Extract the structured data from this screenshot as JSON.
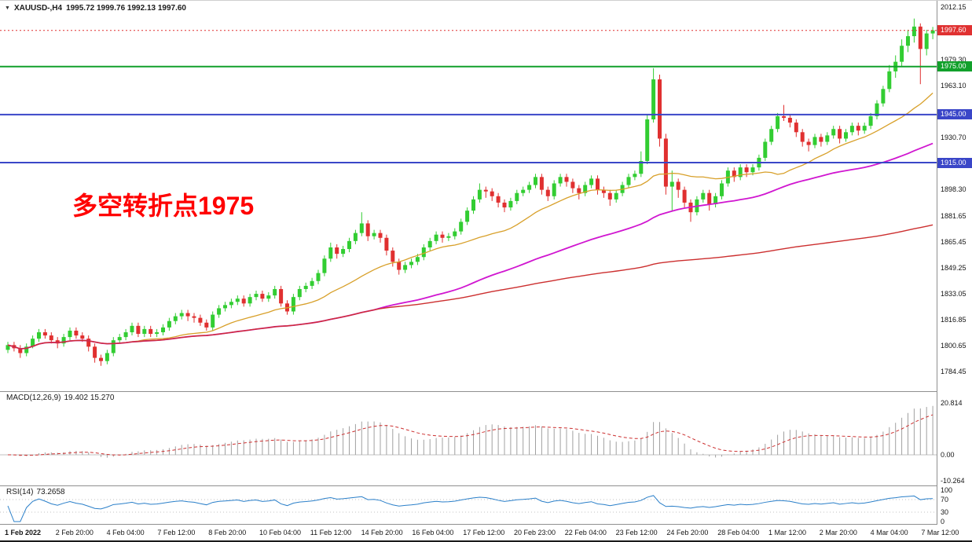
{
  "window": {
    "header": {
      "marker_icon": "▼",
      "symbol_period": "XAUUSD-,H4",
      "ohlc_text": "1995.72 1999.76 1992.13 1997.60"
    }
  },
  "colors": {
    "up_candle": "#32cd32",
    "down_candle": "#e03030",
    "ma_fast": "#d8a02a",
    "ma_mid": "#d016d0",
    "ma_slow": "#cc2f2f",
    "hline_green": "#12a02b",
    "hline_blue": "#3a46c8",
    "current_price": "#e03131",
    "macd_histogram": "#a0a0a0",
    "macd_signal": "#cc2f2f",
    "rsi_line": "#2a7fc9",
    "grid": "#c0c0c0",
    "separator": "#8f8f8f"
  },
  "chart_data": {
    "type": "candlestick",
    "symbol": "XAUUSD-",
    "timeframe": "H4",
    "current": {
      "open": 1995.72,
      "high": 1999.76,
      "low": 1992.13,
      "close": 1997.6
    },
    "candles": [
      [
        1798,
        1803,
        1796,
        1801
      ],
      [
        1801,
        1803,
        1797,
        1799
      ],
      [
        1799,
        1801,
        1793,
        1796
      ],
      [
        1796,
        1802,
        1794,
        1800
      ],
      [
        1800,
        1807,
        1799,
        1805
      ],
      [
        1805,
        1811,
        1803,
        1809
      ],
      [
        1809,
        1811,
        1805,
        1807
      ],
      [
        1807,
        1809,
        1802,
        1804
      ],
      [
        1804,
        1806,
        1799,
        1802
      ],
      [
        1802,
        1808,
        1800,
        1806
      ],
      [
        1806,
        1812,
        1804,
        1810
      ],
      [
        1810,
        1812,
        1805,
        1807
      ],
      [
        1807,
        1809,
        1803,
        1805
      ],
      [
        1805,
        1807,
        1797,
        1800
      ],
      [
        1800,
        1802,
        1790,
        1793
      ],
      [
        1793,
        1795,
        1788,
        1791
      ],
      [
        1791,
        1798,
        1789,
        1796
      ],
      [
        1796,
        1806,
        1794,
        1804
      ],
      [
        1804,
        1808,
        1802,
        1806
      ],
      [
        1806,
        1811,
        1804,
        1809
      ],
      [
        1809,
        1815,
        1807,
        1813
      ],
      [
        1813,
        1815,
        1806,
        1808
      ],
      [
        1808,
        1813,
        1806,
        1811
      ],
      [
        1811,
        1813,
        1806,
        1808
      ],
      [
        1808,
        1811,
        1806,
        1809
      ],
      [
        1809,
        1814,
        1807,
        1812
      ],
      [
        1812,
        1818,
        1810,
        1816
      ],
      [
        1816,
        1821,
        1814,
        1819
      ],
      [
        1819,
        1823,
        1817,
        1821
      ],
      [
        1821,
        1823,
        1816,
        1819
      ],
      [
        1819,
        1821,
        1815,
        1818
      ],
      [
        1818,
        1820,
        1813,
        1815
      ],
      [
        1815,
        1817,
        1810,
        1812
      ],
      [
        1812,
        1822,
        1810,
        1820
      ],
      [
        1820,
        1826,
        1818,
        1824
      ],
      [
        1824,
        1828,
        1822,
        1826
      ],
      [
        1826,
        1830,
        1824,
        1828
      ],
      [
        1828,
        1832,
        1826,
        1830
      ],
      [
        1830,
        1832,
        1825,
        1827
      ],
      [
        1827,
        1833,
        1825,
        1831
      ],
      [
        1831,
        1835,
        1829,
        1833
      ],
      [
        1833,
        1835,
        1828,
        1830
      ],
      [
        1830,
        1834,
        1828,
        1832
      ],
      [
        1832,
        1838,
        1830,
        1836
      ],
      [
        1836,
        1838,
        1825,
        1827
      ],
      [
        1827,
        1829,
        1820,
        1822
      ],
      [
        1822,
        1833,
        1820,
        1831
      ],
      [
        1831,
        1838,
        1829,
        1836
      ],
      [
        1836,
        1840,
        1834,
        1838
      ],
      [
        1838,
        1843,
        1836,
        1841
      ],
      [
        1841,
        1848,
        1839,
        1846
      ],
      [
        1846,
        1857,
        1844,
        1855
      ],
      [
        1855,
        1865,
        1853,
        1862
      ],
      [
        1862,
        1864,
        1855,
        1858
      ],
      [
        1858,
        1863,
        1856,
        1861
      ],
      [
        1861,
        1868,
        1859,
        1866
      ],
      [
        1866,
        1873,
        1864,
        1871
      ],
      [
        1871,
        1884,
        1869,
        1877
      ],
      [
        1877,
        1879,
        1866,
        1869
      ],
      [
        1869,
        1873,
        1867,
        1871
      ],
      [
        1871,
        1873,
        1865,
        1868
      ],
      [
        1868,
        1870,
        1857,
        1860
      ],
      [
        1860,
        1862,
        1850,
        1853
      ],
      [
        1853,
        1855,
        1845,
        1848
      ],
      [
        1848,
        1853,
        1846,
        1851
      ],
      [
        1851,
        1855,
        1849,
        1853
      ],
      [
        1853,
        1858,
        1851,
        1856
      ],
      [
        1856,
        1864,
        1854,
        1862
      ],
      [
        1862,
        1868,
        1860,
        1866
      ],
      [
        1866,
        1872,
        1864,
        1870
      ],
      [
        1870,
        1872,
        1865,
        1868
      ],
      [
        1868,
        1871,
        1866,
        1869
      ],
      [
        1869,
        1874,
        1867,
        1872
      ],
      [
        1872,
        1880,
        1870,
        1878
      ],
      [
        1878,
        1887,
        1876,
        1885
      ],
      [
        1885,
        1894,
        1883,
        1892
      ],
      [
        1892,
        1902,
        1890,
        1898
      ],
      [
        1898,
        1900,
        1893,
        1897
      ],
      [
        1897,
        1899,
        1891,
        1894
      ],
      [
        1894,
        1896,
        1887,
        1890
      ],
      [
        1890,
        1892,
        1884,
        1887
      ],
      [
        1887,
        1893,
        1885,
        1891
      ],
      [
        1891,
        1898,
        1889,
        1896
      ],
      [
        1896,
        1900,
        1894,
        1898
      ],
      [
        1898,
        1903,
        1896,
        1901
      ],
      [
        1901,
        1908,
        1899,
        1906
      ],
      [
        1906,
        1908,
        1895,
        1898
      ],
      [
        1898,
        1900,
        1891,
        1894
      ],
      [
        1894,
        1904,
        1892,
        1902
      ],
      [
        1902,
        1908,
        1900,
        1906
      ],
      [
        1906,
        1908,
        1900,
        1903
      ],
      [
        1903,
        1905,
        1896,
        1899
      ],
      [
        1899,
        1901,
        1892,
        1896
      ],
      [
        1896,
        1903,
        1894,
        1901
      ],
      [
        1901,
        1907,
        1899,
        1905
      ],
      [
        1905,
        1907,
        1895,
        1898
      ],
      [
        1898,
        1900,
        1893,
        1896
      ],
      [
        1896,
        1898,
        1888,
        1892
      ],
      [
        1892,
        1898,
        1890,
        1896
      ],
      [
        1896,
        1903,
        1894,
        1901
      ],
      [
        1901,
        1908,
        1899,
        1906
      ],
      [
        1906,
        1910,
        1904,
        1908
      ],
      [
        1908,
        1922,
        1906,
        1916
      ],
      [
        1916,
        1945,
        1914,
        1942
      ],
      [
        1942,
        1974,
        1940,
        1967
      ],
      [
        1967,
        1970,
        1925,
        1930
      ],
      [
        1930,
        1933,
        1895,
        1900
      ],
      [
        1900,
        1910,
        1885,
        1903
      ],
      [
        1903,
        1905,
        1893,
        1898
      ],
      [
        1898,
        1900,
        1887,
        1890
      ],
      [
        1890,
        1892,
        1878,
        1884
      ],
      [
        1884,
        1894,
        1882,
        1892
      ],
      [
        1892,
        1898,
        1890,
        1896
      ],
      [
        1896,
        1898,
        1885,
        1889
      ],
      [
        1889,
        1896,
        1887,
        1894
      ],
      [
        1894,
        1904,
        1892,
        1902
      ],
      [
        1902,
        1912,
        1900,
        1910
      ],
      [
        1910,
        1912,
        1903,
        1906
      ],
      [
        1906,
        1914,
        1904,
        1912
      ],
      [
        1912,
        1914,
        1906,
        1909
      ],
      [
        1909,
        1914,
        1907,
        1912
      ],
      [
        1912,
        1920,
        1910,
        1918
      ],
      [
        1918,
        1930,
        1916,
        1928
      ],
      [
        1928,
        1938,
        1926,
        1936
      ],
      [
        1936,
        1946,
        1934,
        1944
      ],
      [
        1944,
        1951,
        1941,
        1943
      ],
      [
        1943,
        1945,
        1937,
        1940
      ],
      [
        1940,
        1942,
        1931,
        1934
      ],
      [
        1934,
        1936,
        1925,
        1928
      ],
      [
        1928,
        1930,
        1922,
        1926
      ],
      [
        1926,
        1933,
        1924,
        1931
      ],
      [
        1931,
        1933,
        1925,
        1928
      ],
      [
        1928,
        1934,
        1926,
        1932
      ],
      [
        1932,
        1938,
        1930,
        1936
      ],
      [
        1936,
        1938,
        1927,
        1930
      ],
      [
        1930,
        1936,
        1928,
        1934
      ],
      [
        1934,
        1940,
        1932,
        1938
      ],
      [
        1938,
        1940,
        1932,
        1935
      ],
      [
        1935,
        1940,
        1933,
        1938
      ],
      [
        1938,
        1946,
        1936,
        1944
      ],
      [
        1944,
        1954,
        1942,
        1952
      ],
      [
        1952,
        1963,
        1950,
        1961
      ],
      [
        1961,
        1976,
        1959,
        1972
      ],
      [
        1972,
        1982,
        1968,
        1978
      ],
      [
        1978,
        1992,
        1975,
        1988
      ],
      [
        1988,
        1998,
        1984,
        1994
      ],
      [
        1994,
        2005,
        1990,
        2000
      ],
      [
        2000,
        2002,
        1964,
        1986
      ],
      [
        1986,
        1998,
        1982,
        1995.7
      ],
      [
        1995.7,
        1999.8,
        1992.1,
        1997.6
      ]
    ],
    "moving_averages": [
      {
        "name": "ma-fast",
        "period": 20,
        "color": "#d8a02a",
        "width": 1.3
      },
      {
        "name": "ma-mid",
        "period": 60,
        "color": "#d016d0",
        "width": 1.8
      },
      {
        "name": "ma-slow",
        "period": 400,
        "color": "#cc2f2f",
        "width": 1.4
      }
    ],
    "horizontal_lines": [
      {
        "price": 1975.0,
        "color": "#12a02b",
        "width": 2
      },
      {
        "price": 1945.0,
        "color": "#3a46c8",
        "width": 2
      },
      {
        "price": 1915.0,
        "color": "#3a46c8",
        "width": 2
      }
    ],
    "annotation": {
      "text": "多空转折点1975",
      "color": "#ff0000"
    },
    "price_axis": {
      "ticks": [
        {
          "label": "2012.15",
          "price": 2012.15
        },
        {
          "label": "1979.30",
          "price": 1979.3
        },
        {
          "label": "1963.10",
          "price": 1963.1
        },
        {
          "label": "1930.70",
          "price": 1930.7
        },
        {
          "label": "1898.30",
          "price": 1898.3
        },
        {
          "label": "1881.65",
          "price": 1881.65
        },
        {
          "label": "1865.45",
          "price": 1865.45
        },
        {
          "label": "1849.25",
          "price": 1849.25
        },
        {
          "label": "1833.05",
          "price": 1833.05
        },
        {
          "label": "1816.85",
          "price": 1816.85
        },
        {
          "label": "1800.65",
          "price": 1800.65
        },
        {
          "label": "1784.45",
          "price": 1784.45
        }
      ],
      "badges": [
        {
          "label": "1997.60",
          "price": 1997.6,
          "bg": "#e03131",
          "role": "current-price"
        },
        {
          "label": "1975.00",
          "price": 1975.0,
          "bg": "#12a02b",
          "role": "level-price"
        },
        {
          "label": "1945.00",
          "price": 1945.0,
          "bg": "#3a46c8",
          "role": "level-price"
        },
        {
          "label": "1915.00",
          "price": 1915.0,
          "bg": "#3a46c8",
          "role": "level-price"
        }
      ]
    },
    "time_axis": [
      "1 Feb 2022",
      "2 Feb 20:00",
      "4 Feb 04:00",
      "7 Feb 12:00",
      "8 Feb 20:00",
      "10 Feb 04:00",
      "11 Feb 12:00",
      "14 Feb 20:00",
      "16 Feb 04:00",
      "17 Feb 12:00",
      "20 Feb 23:00",
      "22 Feb 04:00",
      "23 Feb 12:00",
      "24 Feb 20:00",
      "28 Feb 04:00",
      "1 Mar 12:00",
      "2 Mar 20:00",
      "4 Mar 04:00",
      "7 Mar 12:00"
    ],
    "indicators": {
      "macd": {
        "label": "MACD(12,26,9)",
        "values_text": "19.402 15.270",
        "fast": 12,
        "slow": 26,
        "signal": 9,
        "scale_ticks": [
          {
            "label": "20.814",
            "value": 20.814
          },
          {
            "label": "0.00",
            "value": 0
          },
          {
            "label": "-10.264",
            "value": -10.264
          }
        ]
      },
      "rsi": {
        "label": "RSI(14)",
        "value_text": "73.2658",
        "period": 14,
        "levels": [
          70,
          30
        ],
        "scale_ticks": [
          {
            "label": "100",
            "value": 100
          },
          {
            "label": "70",
            "value": 70
          },
          {
            "label": "30",
            "value": 30
          },
          {
            "label": "0",
            "value": 0
          }
        ]
      }
    }
  }
}
